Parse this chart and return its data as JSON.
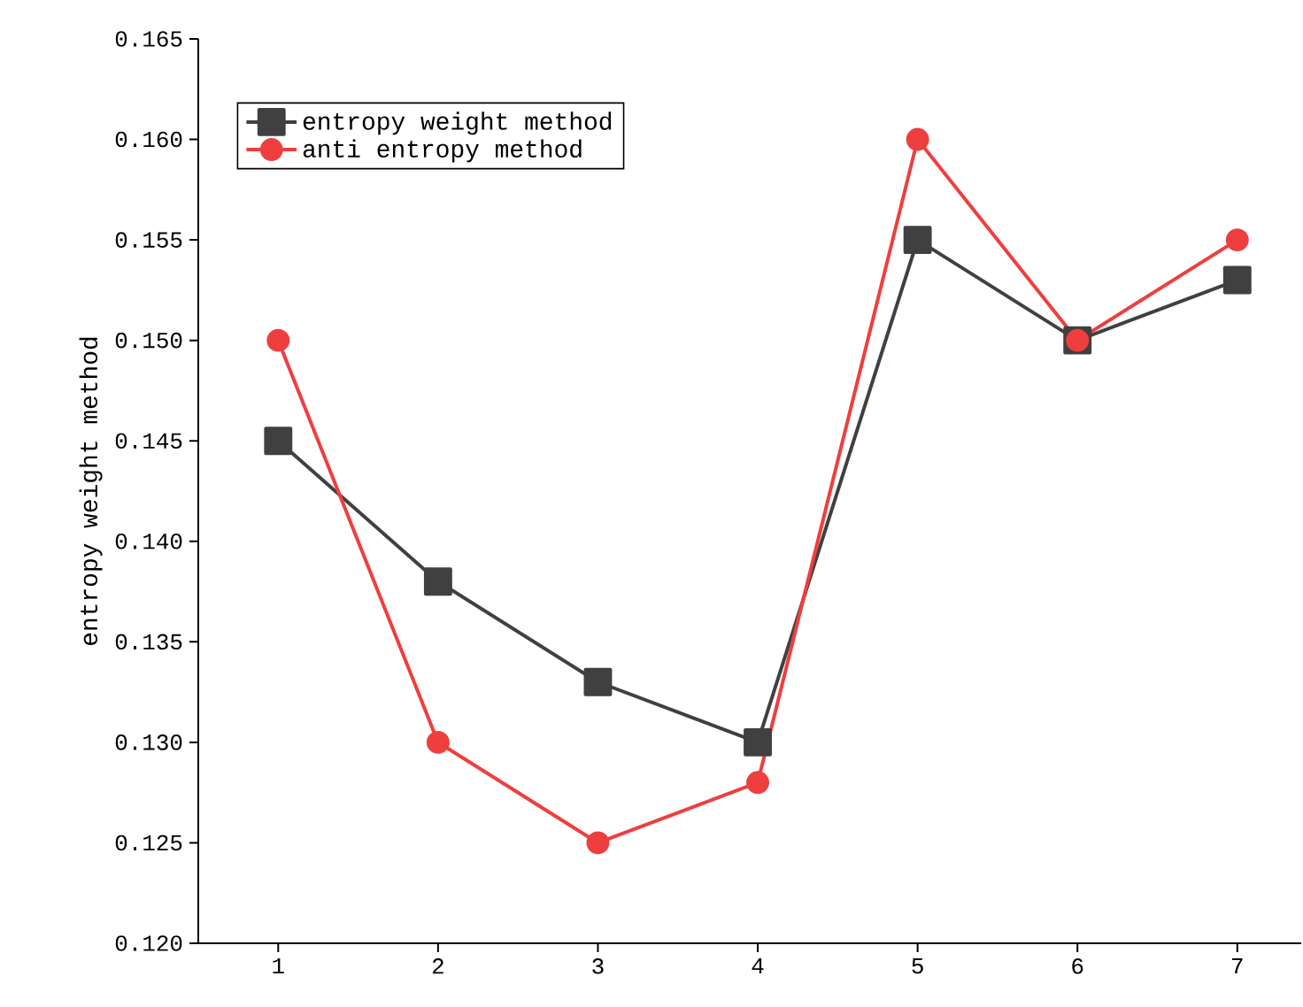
{
  "chart_data": {
    "type": "line",
    "ylabel": "entropy weight method",
    "x": [
      1,
      2,
      3,
      4,
      5,
      6,
      7
    ],
    "xlim": [
      0.5,
      7.4
    ],
    "xticks": [
      1,
      2,
      3,
      4,
      5,
      6,
      7
    ],
    "ylim": [
      0.12,
      0.165
    ],
    "yticks": [
      {
        "value": 0.12,
        "label": "0.120"
      },
      {
        "value": 0.125,
        "label": "0.125"
      },
      {
        "value": 0.13,
        "label": "0.130"
      },
      {
        "value": 0.135,
        "label": "0.135"
      },
      {
        "value": 0.14,
        "label": "0.140"
      },
      {
        "value": 0.145,
        "label": "0.145"
      },
      {
        "value": 0.15,
        "label": "0.150"
      },
      {
        "value": 0.155,
        "label": "0.155"
      },
      {
        "value": 0.16,
        "label": "0.160"
      },
      {
        "value": 0.165,
        "label": "0.165"
      }
    ],
    "legend": "top left",
    "line_style": "solid",
    "series": [
      {
        "name": "entropy weight method",
        "color": "#404040",
        "marker": "square",
        "values": [
          0.145,
          0.138,
          0.133,
          0.13,
          0.155,
          0.15,
          0.153
        ]
      },
      {
        "name": "anti entropy method",
        "color": "#ef3e3e",
        "marker": "circle",
        "values": [
          0.15,
          0.13,
          0.125,
          0.128,
          0.16,
          0.15,
          0.155
        ]
      }
    ]
  }
}
